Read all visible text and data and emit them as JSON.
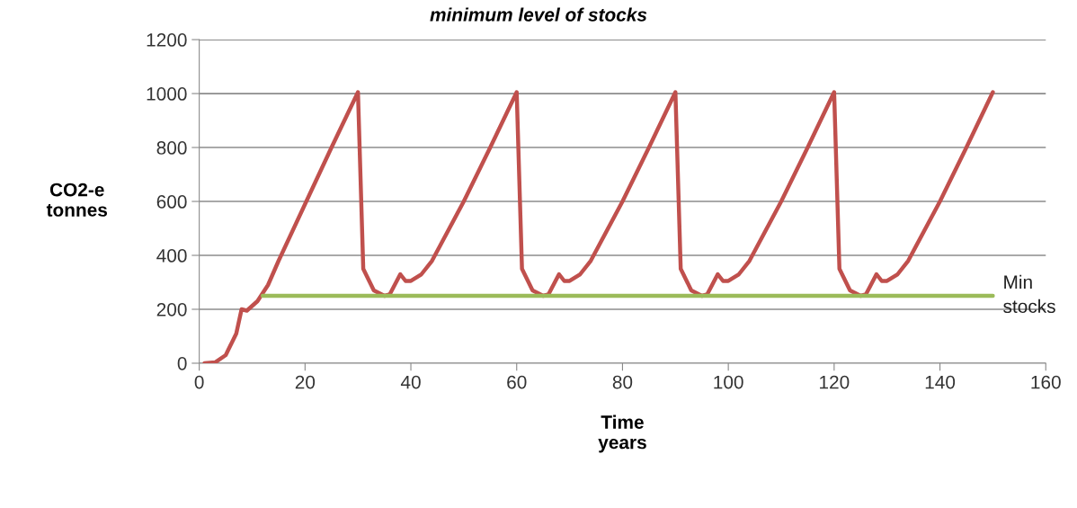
{
  "chart_data": {
    "type": "line",
    "title": "minimum level of stocks",
    "xlabel": "Time\nyears",
    "ylabel": "CO2-e\ntonnes",
    "xlim": [
      0,
      160
    ],
    "xticks": [
      0,
      20,
      40,
      60,
      80,
      100,
      120,
      140,
      160
    ],
    "ylim": [
      0,
      1200
    ],
    "yticks": [
      0,
      200,
      400,
      600,
      800,
      1000,
      1200
    ],
    "grid": "y",
    "legend": false,
    "marker": "none",
    "line_style": "solid",
    "series": [
      {
        "color": "#c0504d",
        "x": [
          1,
          3,
          5,
          7,
          8,
          9,
          11,
          13,
          15,
          20,
          25,
          30,
          31,
          32,
          33,
          35,
          36,
          38,
          39,
          40,
          42,
          44,
          50,
          55,
          60,
          61,
          62,
          63,
          65,
          66,
          68,
          69,
          70,
          72,
          74,
          80,
          85,
          90,
          91,
          92,
          93,
          95,
          96,
          98,
          99,
          100,
          102,
          104,
          110,
          115,
          120,
          121,
          122,
          123,
          125,
          126,
          128,
          129,
          130,
          132,
          134,
          140,
          145,
          150
        ],
        "values": [
          0,
          3,
          30,
          110,
          200,
          195,
          230,
          290,
          380,
          590,
          800,
          1005,
          350,
          310,
          270,
          250,
          255,
          330,
          305,
          305,
          330,
          380,
          600,
          800,
          1005,
          350,
          310,
          270,
          250,
          255,
          330,
          305,
          305,
          330,
          380,
          600,
          800,
          1005,
          350,
          310,
          270,
          250,
          255,
          330,
          305,
          305,
          330,
          380,
          600,
          800,
          1005,
          350,
          310,
          270,
          250,
          255,
          330,
          305,
          305,
          330,
          380,
          600,
          800,
          1005
        ]
      },
      {
        "name": "Min\nstocks",
        "color": "#9bbb59",
        "x": [
          12,
          150
        ],
        "values": [
          250,
          250
        ]
      }
    ]
  }
}
